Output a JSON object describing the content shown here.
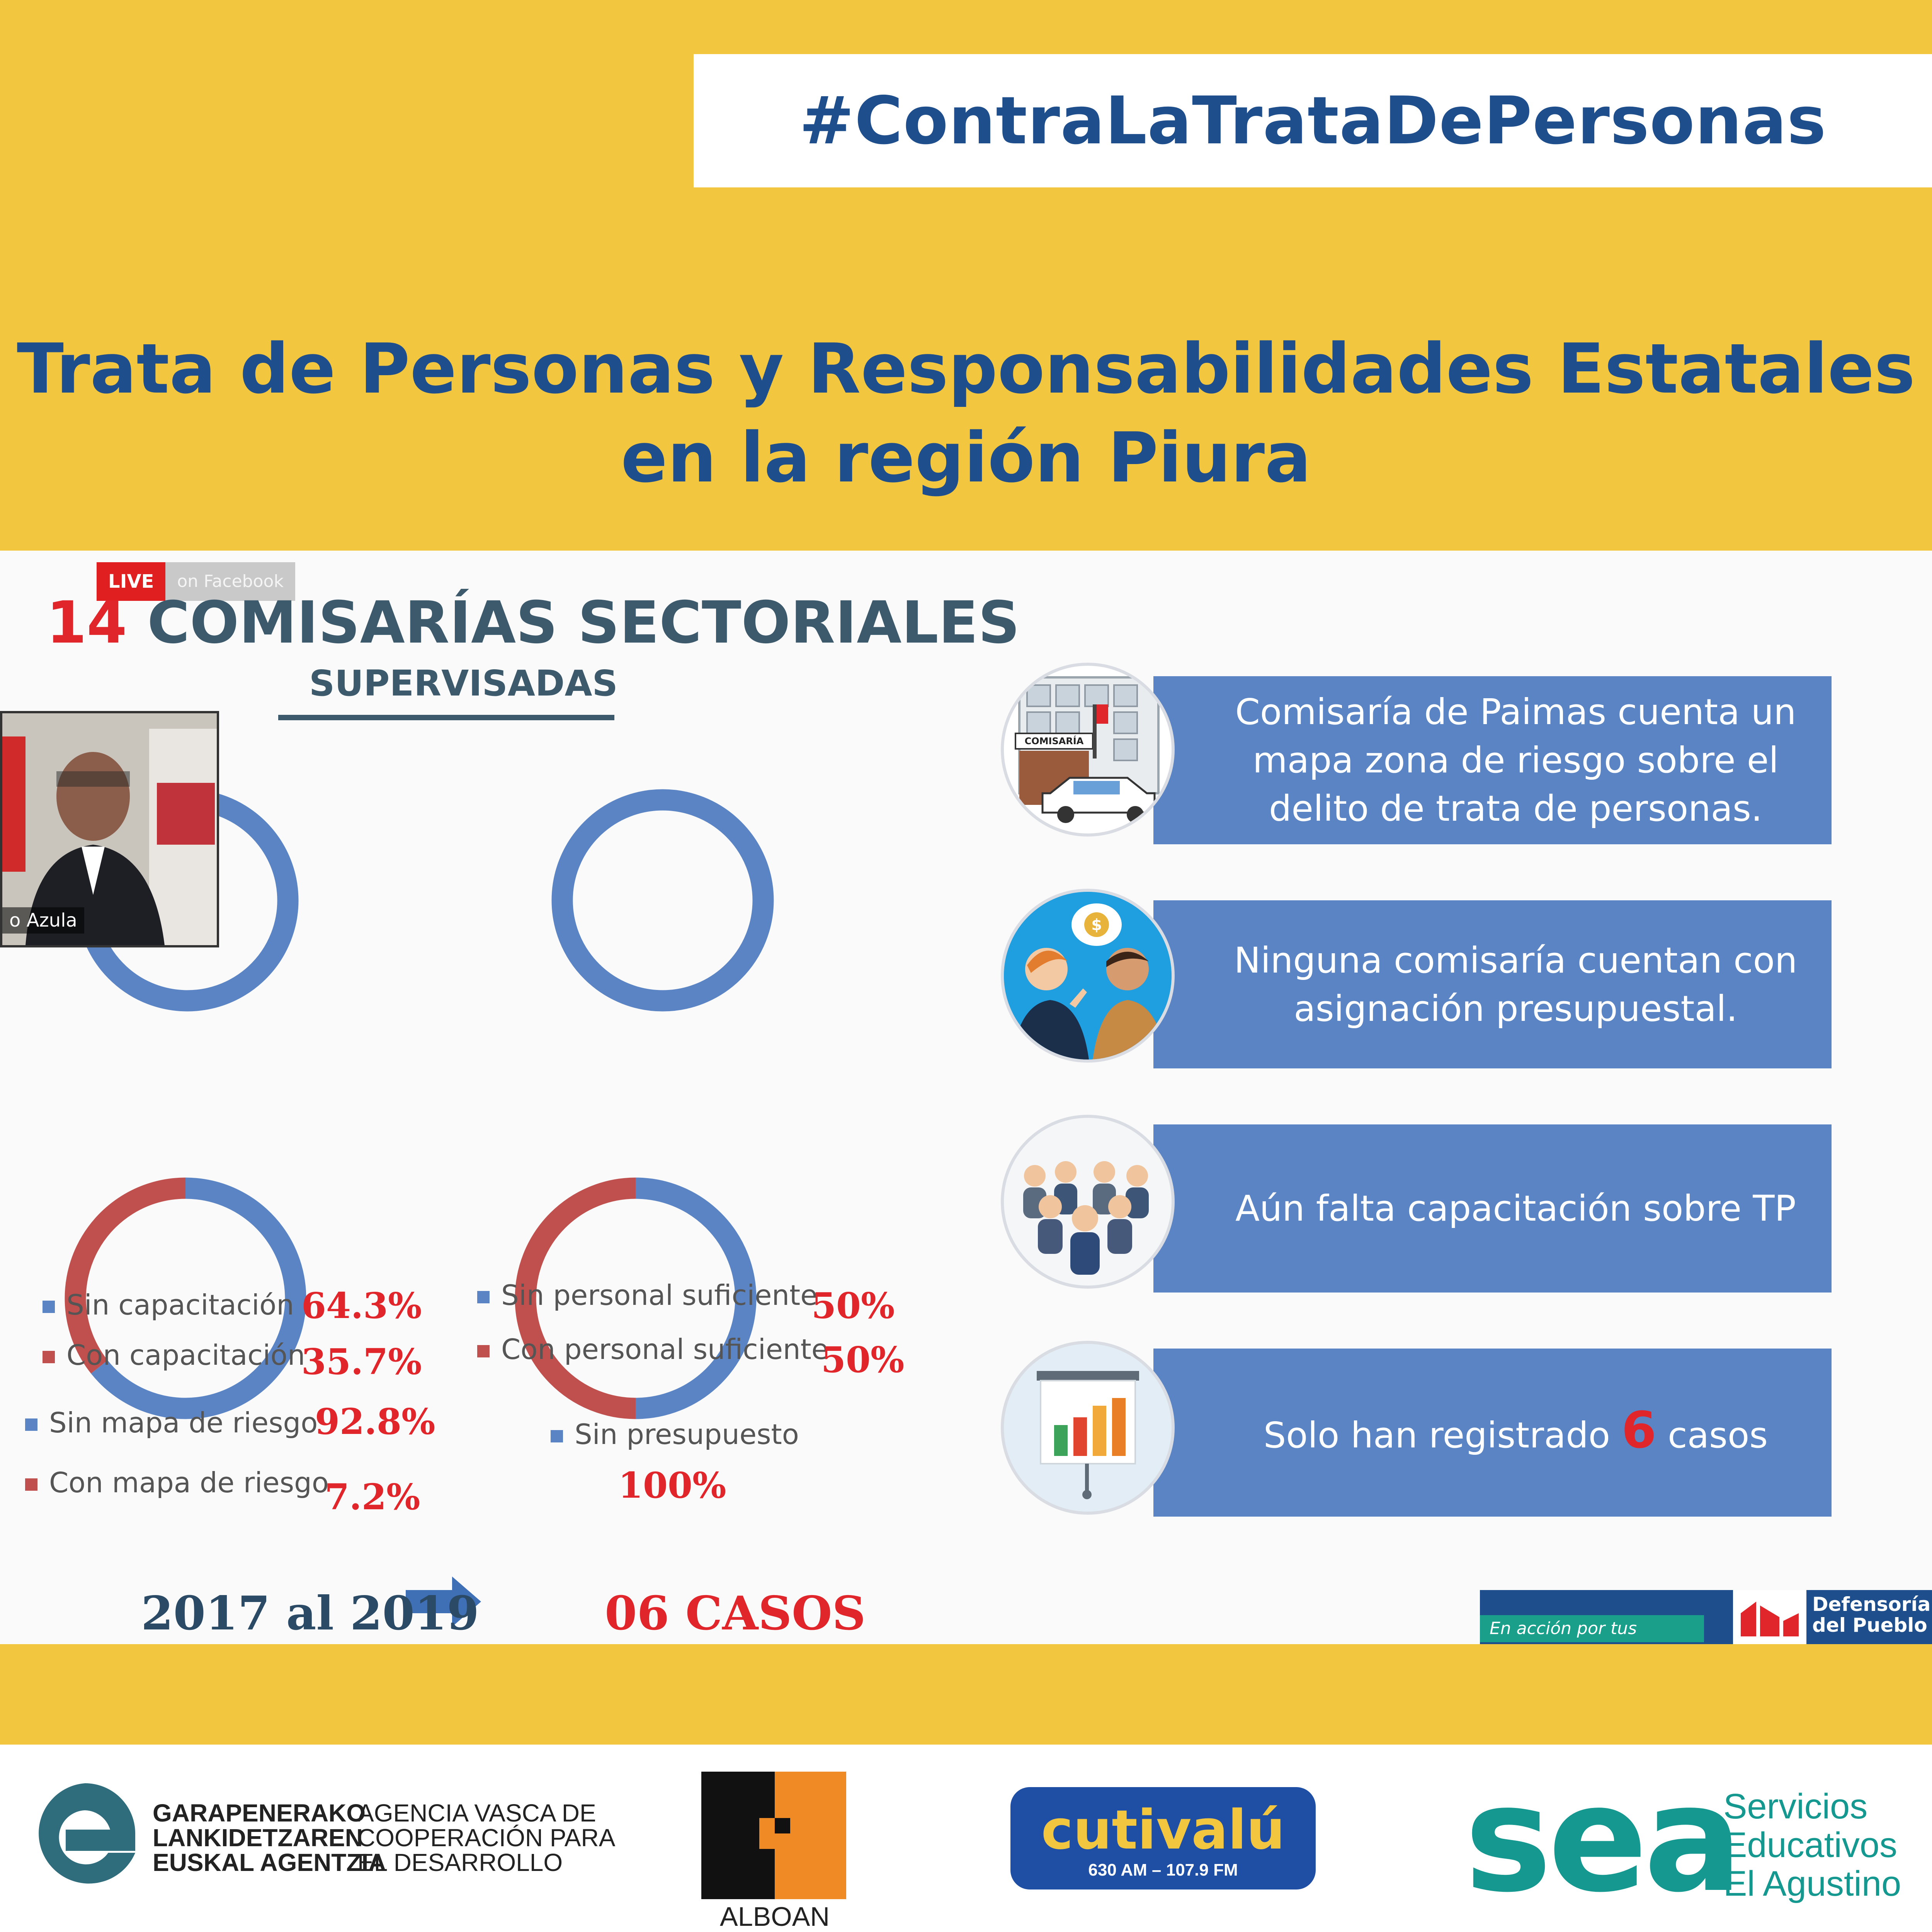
{
  "hashtag": "#ContraLaTrataDePersonas",
  "title": {
    "line1": "Trata de Personas y Responsabilidades Estatales",
    "line2": "en la región Piura"
  },
  "slide": {
    "live_label": "LIVE",
    "live_platform": "on Facebook",
    "title_number": "14",
    "title_text": "COMISARÍAS SECTORIALES",
    "subtitle": "SUPERVISADAS",
    "webcam_name": "o Azula",
    "colors": {
      "blue": "#5b84c4",
      "red": "#c0504d",
      "accent_red": "#e0262b",
      "box_blue": "#5b84c4"
    },
    "donuts": [
      {
        "segments": [
          {
            "label": "Sin mapa de riesgo",
            "pct_text": "92.8%",
            "value": 92.8,
            "color": "#5b84c4"
          },
          {
            "label": "Con mapa de riesgo",
            "pct_text": "7.2%",
            "value": 7.2,
            "color": "#c0504d"
          }
        ]
      },
      {
        "segments": [
          {
            "label": "Sin presupuesto",
            "pct_text": "100%",
            "value": 100,
            "color": "#5b84c4"
          }
        ]
      },
      {
        "segments": [
          {
            "label": "Sin capacitación",
            "pct_text": "64.3%",
            "value": 64.3,
            "color": "#5b84c4"
          },
          {
            "label": "Con capacitación",
            "pct_text": "35.7%",
            "value": 35.7,
            "color": "#c0504d"
          }
        ]
      },
      {
        "segments": [
          {
            "label": "Sin personal suficiente",
            "pct_text": "50%",
            "value": 50,
            "color": "#5b84c4"
          },
          {
            "label": "Con personal suficiente",
            "pct_text": "50%",
            "value": 50,
            "color": "#c0504d"
          }
        ]
      }
    ],
    "period": "2017 al 2019",
    "cases": "06 CASOS",
    "findings": [
      {
        "icon": "police-station-icon",
        "text": "Comisaría de Paimas cuenta un mapa zona de riesgo sobre el delito de trata de personas."
      },
      {
        "icon": "budget-discussion-icon",
        "text": "Ninguna comisaría cuentan con asignación presupuestal."
      },
      {
        "icon": "group-people-icon",
        "text": "Aún falta capacitación sobre TP"
      },
      {
        "icon": "presentation-chart-icon",
        "text_before": "Solo han registrado",
        "highlight": "6",
        "text_after": "casos"
      }
    ],
    "station_sign": "COMISARÍA",
    "footer_slogan": "En acción por tus derechos",
    "footer_org_line1": "Defensoría",
    "footer_org_line2": "del Pueblo"
  },
  "logos": {
    "agency_basque": [
      "GARAPENERAKO",
      "LANKIDETZAREN",
      "EUSKAL AGENTZIA"
    ],
    "agency_spanish": [
      "AGENCIA VASCA DE",
      "COOPERACIÓN PARA",
      "EL DESARROLLO"
    ],
    "alboan": "ALBOAN",
    "cutivalu_name": "cutivalú",
    "cutivalu_freq": "630 AM – 107.9 FM",
    "sea_logo": "sea",
    "sea_text": [
      "Servicios",
      "Educativos",
      "El Agustino"
    ]
  }
}
